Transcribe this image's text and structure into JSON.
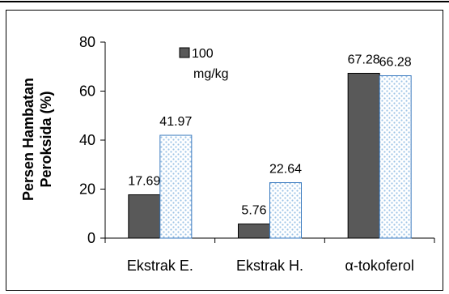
{
  "chart_data": {
    "type": "bar",
    "title": "",
    "xlabel": "",
    "ylabel": "Persen Hambatan Peroksida (%)",
    "ylabel_lines": [
      "Persen Hambatan",
      "Peroksida (%)"
    ],
    "categories": [
      "Ekstrak E.",
      "Ekstrak H.",
      "α-tokoferol"
    ],
    "ylim": [
      0,
      80
    ],
    "yticks": [
      0,
      20,
      40,
      60,
      80
    ],
    "grid": false,
    "legend_position": "top",
    "series": [
      {
        "name": "100 mg/kg",
        "name_lines": [
          "100",
          "mg/kg"
        ],
        "values": [
          17.69,
          5.76,
          67.28
        ],
        "labels": [
          "17.69",
          "5.76",
          "67.28"
        ],
        "color": "#595959",
        "pattern": "solid"
      },
      {
        "values": [
          41.97,
          22.64,
          66.28
        ],
        "labels": [
          "41.97",
          "22.64",
          "66.28"
        ],
        "color": "#9dc3e6",
        "pattern": "dotted"
      }
    ]
  }
}
